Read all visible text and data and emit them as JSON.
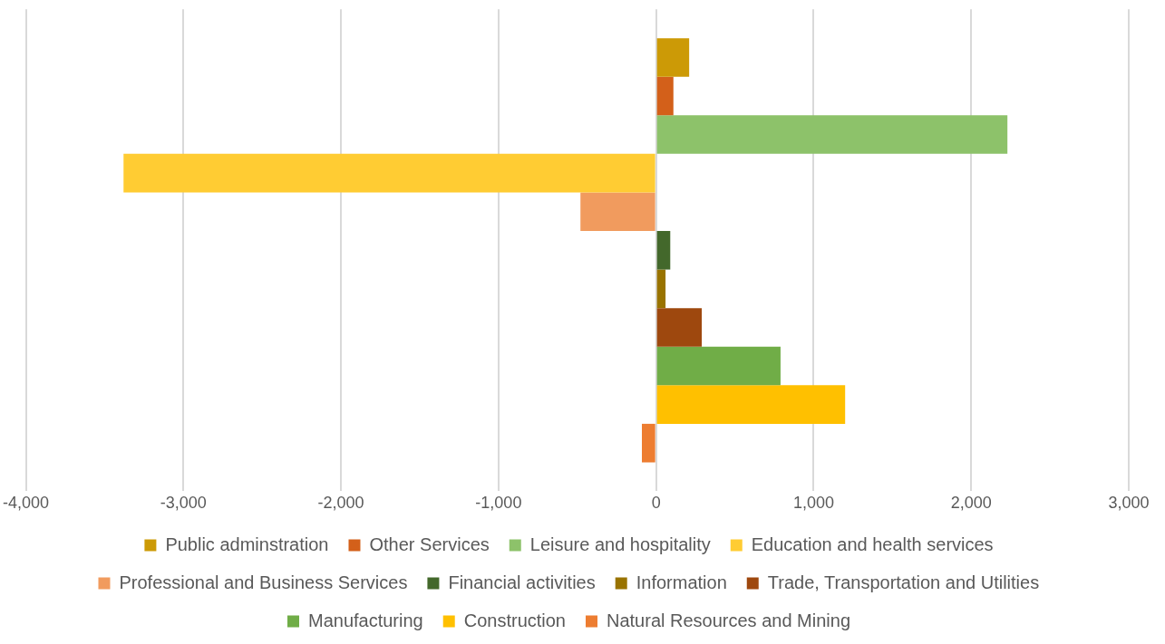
{
  "chart_data": {
    "type": "bar",
    "orientation": "horizontal",
    "categories": [
      null
    ],
    "series": [
      {
        "name": "Public adminstration",
        "color": "#cc9a06",
        "values": [
          210
        ]
      },
      {
        "name": "Other Services",
        "color": "#d3601a",
        "values": [
          110
        ]
      },
      {
        "name": "Leisure and hospitality",
        "color": "#8dc26a",
        "values": [
          2230
        ]
      },
      {
        "name": "Education and health services",
        "color": "#ffcc33",
        "values": [
          -3380
        ]
      },
      {
        "name": "Professional and Business Services",
        "color": "#f19b5e",
        "values": [
          -480
        ]
      },
      {
        "name": "Financial activities",
        "color": "#43682b",
        "values": [
          90
        ]
      },
      {
        "name": "Information",
        "color": "#997300",
        "values": [
          60
        ]
      },
      {
        "name": "Trade, Transportation and Utilities",
        "color": "#9e480e",
        "values": [
          290
        ]
      },
      {
        "name": "Manufacturing",
        "color": "#70ad47",
        "values": [
          790
        ]
      },
      {
        "name": "Construction",
        "color": "#ffc000",
        "values": [
          1200
        ]
      },
      {
        "name": "Natural Resources and Mining",
        "color": "#ed7d31",
        "values": [
          -90
        ]
      }
    ],
    "xlim": [
      -4000,
      3000
    ],
    "xticks": [
      {
        "value": -4000,
        "label": "-4,000"
      },
      {
        "value": -3000,
        "label": "-3,000"
      },
      {
        "value": -2000,
        "label": "-2,000"
      },
      {
        "value": -1000,
        "label": "-1,000"
      },
      0,
      {
        "value": 1000,
        "label": "1,000"
      },
      {
        "value": 2000,
        "label": "2,000"
      },
      {
        "value": 3000,
        "label": "3,000"
      }
    ],
    "grid": "x",
    "legend": "bottom"
  }
}
